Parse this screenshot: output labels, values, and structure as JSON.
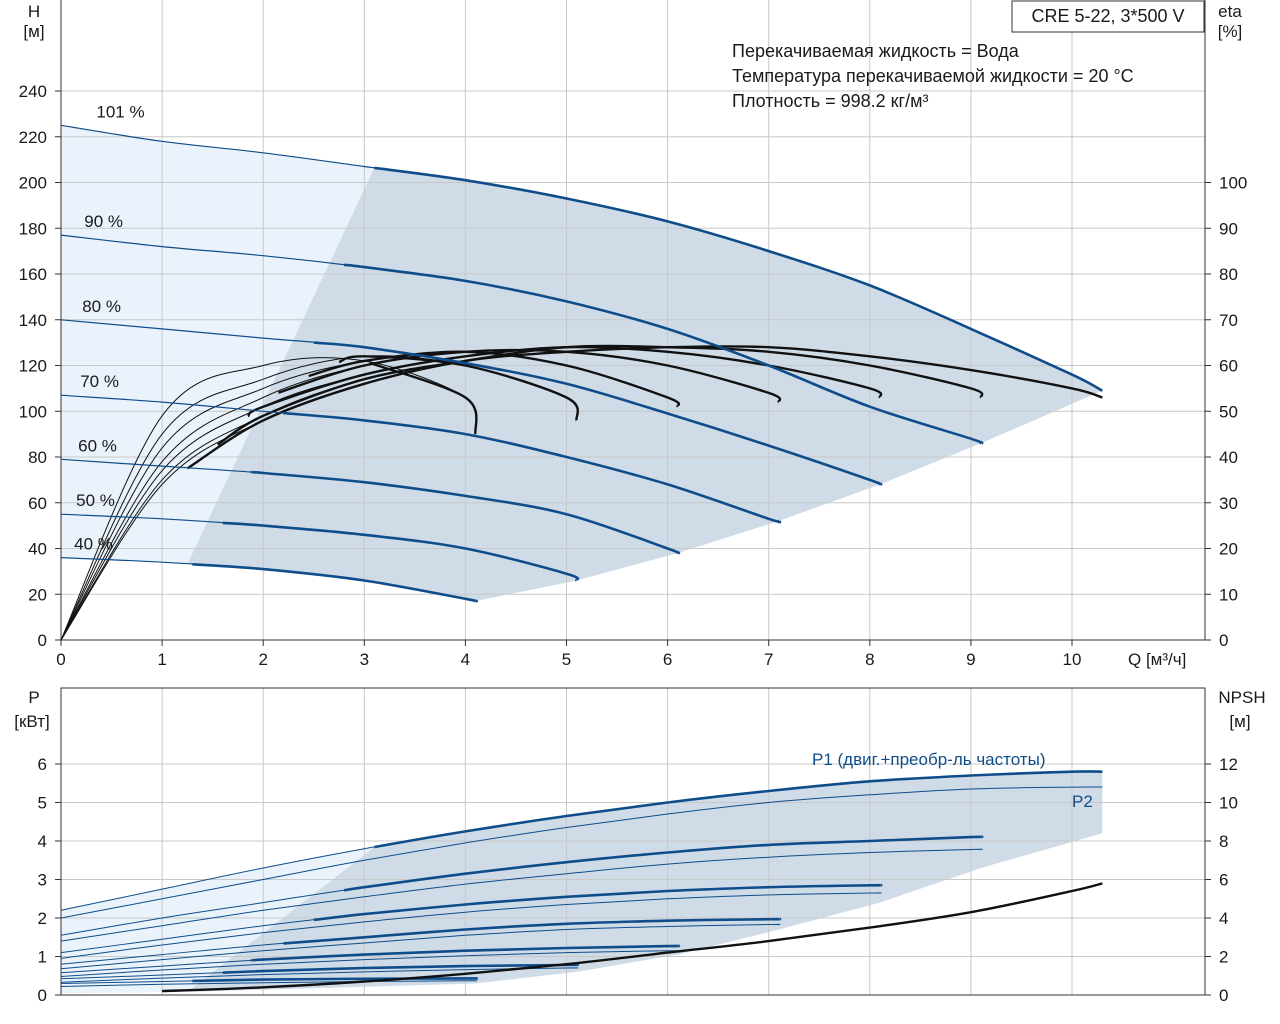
{
  "model_box": "CRE 5-22, 3*500 V",
  "info": {
    "line1": "Перекачиваемая жидкость = Вода",
    "line2": "Температура перекачиваемой жидкости = 20 °C",
    "line3": "Плотность = 998.2 кг/м³"
  },
  "axes": {
    "top_left_title": "H",
    "top_left_unit": "[м]",
    "top_right_title": "eta",
    "top_right_unit": "[%]",
    "x_label": "Q [м³/ч]",
    "bottom_left_title": "P",
    "bottom_left_unit": "[кВт]",
    "bottom_right_title": "NPSH",
    "bottom_right_unit": "[м]"
  },
  "power_labels": {
    "p1": "P1 (двиг.+преобр-ль частоты)",
    "p2": "P2"
  },
  "colors": {
    "pump_curve": "#0f4d8a",
    "efficiency_curve": "#111111",
    "area_light": "#eaf3fb",
    "area_dark": "#cfdce8",
    "grid": "#c8c8c8"
  },
  "chart_data": [
    {
      "type": "line",
      "title": "",
      "xlabel": "Q [м³/ч]",
      "ylabel": "H [м]",
      "y2label": "eta [%]",
      "xlim": [
        0,
        11.2
      ],
      "ylim": [
        0,
        250
      ],
      "y2lim": [
        0,
        100
      ],
      "x_ticks": [
        0,
        1,
        2,
        3,
        4,
        5,
        6,
        7,
        8,
        9,
        10
      ],
      "y_ticks": [
        0,
        20,
        40,
        60,
        80,
        100,
        120,
        140,
        160,
        180,
        200,
        220,
        240
      ],
      "y2_ticks": [
        0,
        10,
        20,
        30,
        40,
        50,
        60,
        70,
        80,
        90,
        100
      ],
      "grid": true,
      "head_curves": [
        {
          "name": "101 %",
          "x": [
            0,
            1,
            2,
            3,
            4,
            5,
            6,
            7,
            8,
            9,
            10,
            10.3
          ],
          "y": [
            225,
            218,
            213,
            207,
            201,
            193,
            183,
            170,
            155,
            136,
            116,
            109
          ]
        },
        {
          "name": "90 %",
          "x": [
            0,
            1,
            2,
            3,
            4,
            5,
            6,
            7,
            8,
            9,
            9.1
          ],
          "y": [
            177,
            172,
            168,
            163,
            157,
            148,
            136,
            120,
            102,
            88,
            86
          ]
        },
        {
          "name": "80 %",
          "x": [
            0,
            1,
            2,
            3,
            4,
            5,
            6,
            7,
            8,
            8.1
          ],
          "y": [
            140,
            136,
            132,
            128,
            121,
            112,
            99,
            85,
            70,
            68
          ]
        },
        {
          "name": "70 %",
          "x": [
            0,
            1,
            2,
            3,
            4,
            5,
            6,
            7,
            7.1
          ],
          "y": [
            107,
            104,
            100,
            96,
            90,
            80,
            68,
            53,
            52
          ]
        },
        {
          "name": "60 %",
          "x": [
            0,
            1,
            2,
            3,
            4,
            5,
            6,
            6.1
          ],
          "y": [
            79,
            76,
            73,
            69,
            63,
            55,
            40,
            38
          ]
        },
        {
          "name": "50 %",
          "x": [
            0,
            1,
            2,
            3,
            4,
            5,
            5.1
          ],
          "y": [
            55,
            53,
            50,
            46,
            40,
            29,
            26
          ]
        },
        {
          "name": "40 %",
          "x": [
            0,
            1,
            2,
            3,
            4,
            4.1
          ],
          "y": [
            36,
            34,
            31,
            26,
            18,
            17
          ]
        }
      ],
      "efficiency_curves": [
        {
          "speed": "101 %",
          "x": [
            0,
            1,
            2,
            3,
            4,
            5,
            6,
            7,
            8,
            9,
            10,
            10.3
          ],
          "eta": [
            0,
            34,
            48,
            56,
            61,
            63,
            64,
            64,
            62,
            59,
            55,
            53
          ]
        },
        {
          "speed": "90 %",
          "x": [
            0,
            1,
            2,
            3,
            4,
            5,
            6,
            7,
            8,
            9,
            9.1
          ],
          "eta": [
            0,
            35,
            49,
            57,
            61,
            64,
            64,
            63,
            60,
            55,
            53
          ]
        },
        {
          "speed": "80 %",
          "x": [
            0,
            1,
            2,
            3,
            4,
            5,
            6,
            7,
            8,
            8.1
          ],
          "eta": [
            0,
            37,
            51,
            58,
            62,
            64,
            63,
            60,
            55,
            53
          ]
        },
        {
          "speed": "70 %",
          "x": [
            0,
            1,
            2,
            3,
            4,
            5,
            6,
            7,
            7.1
          ],
          "eta": [
            0,
            39,
            53,
            60,
            63,
            63,
            60,
            54,
            52
          ]
        },
        {
          "speed": "60 %",
          "x": [
            0,
            1,
            2,
            3,
            4,
            5,
            6,
            6.1
          ],
          "eta": [
            0,
            42,
            55,
            61,
            63,
            60,
            53,
            51
          ]
        },
        {
          "speed": "50 %",
          "x": [
            0,
            1,
            2,
            3,
            4,
            5,
            5.1
          ],
          "eta": [
            0,
            45,
            57,
            62,
            60,
            53,
            48
          ]
        },
        {
          "speed": "40 %",
          "x": [
            0,
            1,
            2,
            3,
            4,
            4.1
          ],
          "eta": [
            0,
            49,
            60,
            61,
            53,
            45
          ]
        }
      ]
    },
    {
      "type": "line",
      "title": "",
      "xlabel": "Q [м³/ч]",
      "ylabel": "P [кВт]",
      "y2label": "NPSH [м]",
      "xlim": [
        0,
        11.2
      ],
      "ylim": [
        0,
        6.5
      ],
      "y2lim": [
        0,
        13
      ],
      "y_ticks": [
        0,
        1,
        2,
        3,
        4,
        5,
        6
      ],
      "y2_ticks": [
        0,
        2,
        4,
        6,
        8,
        10,
        12
      ],
      "grid": true,
      "p1_curves": [
        {
          "speed": "101 %",
          "x": [
            0,
            1,
            2,
            3,
            4,
            5,
            6,
            7,
            8,
            9,
            10,
            10.3
          ],
          "y": [
            2.2,
            2.75,
            3.3,
            3.8,
            4.25,
            4.65,
            5.0,
            5.3,
            5.55,
            5.7,
            5.8,
            5.8
          ]
        },
        {
          "speed": "90 %",
          "x": [
            0,
            1,
            2,
            3,
            4,
            5,
            6,
            7,
            8,
            9,
            9.1
          ],
          "y": [
            1.55,
            2.0,
            2.4,
            2.8,
            3.15,
            3.45,
            3.7,
            3.9,
            4.0,
            4.1,
            4.1
          ]
        },
        {
          "speed": "80 %",
          "x": [
            0,
            1,
            2,
            3,
            4,
            5,
            6,
            7,
            8,
            8.1
          ],
          "y": [
            1.1,
            1.45,
            1.8,
            2.1,
            2.35,
            2.55,
            2.7,
            2.8,
            2.85,
            2.85
          ]
        },
        {
          "speed": "70 %",
          "x": [
            0,
            1,
            2,
            3,
            4,
            5,
            6,
            7,
            7.1
          ],
          "y": [
            0.8,
            1.05,
            1.3,
            1.5,
            1.7,
            1.85,
            1.93,
            1.97,
            1.97
          ]
        },
        {
          "speed": "60 %",
          "x": [
            0,
            1,
            2,
            3,
            4,
            5,
            6,
            6.1
          ],
          "y": [
            0.58,
            0.75,
            0.92,
            1.05,
            1.15,
            1.22,
            1.27,
            1.27
          ]
        },
        {
          "speed": "50 %",
          "x": [
            0,
            1,
            2,
            3,
            4,
            5,
            5.1
          ],
          "y": [
            0.42,
            0.52,
            0.62,
            0.7,
            0.75,
            0.78,
            0.78
          ]
        },
        {
          "speed": "40 %",
          "x": [
            0,
            1,
            2,
            3,
            4,
            4.1
          ],
          "y": [
            0.3,
            0.35,
            0.4,
            0.42,
            0.43,
            0.43
          ]
        }
      ],
      "p2_curves": [
        {
          "speed": "101 %",
          "x": [
            0,
            1,
            2,
            3,
            4,
            5,
            6,
            7,
            8,
            9,
            10,
            10.3
          ],
          "y": [
            2.0,
            2.5,
            3.0,
            3.5,
            3.95,
            4.35,
            4.7,
            5.0,
            5.2,
            5.35,
            5.4,
            5.4
          ]
        },
        {
          "speed": "90 %",
          "x": [
            0,
            1,
            2,
            3,
            4,
            5,
            6,
            7,
            8,
            9,
            9.1
          ],
          "y": [
            1.4,
            1.8,
            2.2,
            2.55,
            2.88,
            3.15,
            3.4,
            3.58,
            3.7,
            3.78,
            3.78
          ]
        },
        {
          "speed": "80 %",
          "x": [
            0,
            1,
            2,
            3,
            4,
            5,
            6,
            7,
            8,
            8.1
          ],
          "y": [
            0.95,
            1.3,
            1.62,
            1.9,
            2.15,
            2.35,
            2.5,
            2.6,
            2.65,
            2.65
          ]
        },
        {
          "speed": "70 %",
          "x": [
            0,
            1,
            2,
            3,
            4,
            5,
            6,
            7,
            7.1
          ],
          "y": [
            0.68,
            0.92,
            1.15,
            1.35,
            1.55,
            1.7,
            1.78,
            1.83,
            1.83
          ]
        },
        {
          "speed": "60 %",
          "x": [
            0,
            1,
            2,
            3,
            4,
            5,
            6,
            6.1
          ],
          "y": [
            0.48,
            0.65,
            0.8,
            0.92,
            1.02,
            1.1,
            1.15,
            1.15
          ]
        },
        {
          "speed": "50 %",
          "x": [
            0,
            1,
            2,
            3,
            4,
            5,
            5.1
          ],
          "y": [
            0.33,
            0.44,
            0.53,
            0.6,
            0.66,
            0.7,
            0.7
          ]
        },
        {
          "speed": "40 %",
          "x": [
            0,
            1,
            2,
            3,
            4,
            4.1
          ],
          "y": [
            0.22,
            0.28,
            0.32,
            0.35,
            0.37,
            0.37
          ]
        }
      ],
      "npsh_curve": {
        "x": [
          1,
          2,
          3,
          4,
          5,
          6,
          7,
          8,
          9,
          10,
          10.3
        ],
        "y": [
          0.2,
          0.4,
          0.7,
          1.1,
          1.6,
          2.2,
          2.8,
          3.5,
          4.3,
          5.4,
          5.8
        ]
      }
    }
  ]
}
